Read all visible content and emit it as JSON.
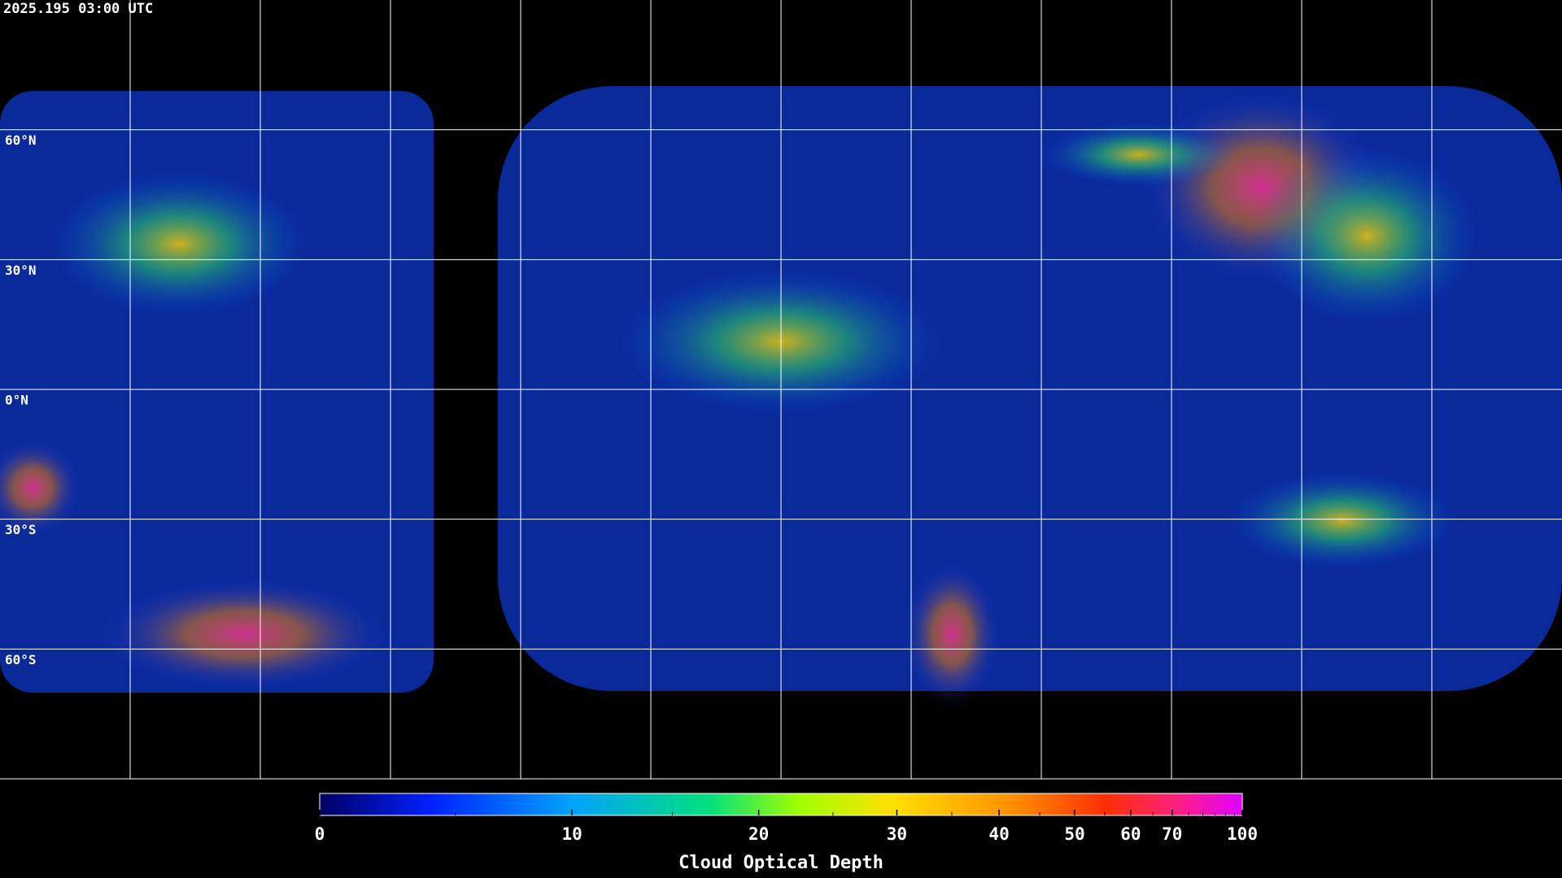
{
  "header": {
    "title": "2025.195 03:00 UTC"
  },
  "map": {
    "lon_range": [
      -180,
      180
    ],
    "lat_range": [
      90,
      -90
    ],
    "lon_lines": [
      -150,
      -120,
      -90,
      -60,
      -30,
      0,
      30,
      60,
      90,
      120,
      150
    ],
    "lat_lines": [
      {
        "value": 60,
        "label": "60°N"
      },
      {
        "value": 30,
        "label": "30°N"
      },
      {
        "value": 0,
        "label": "0°N"
      },
      {
        "value": -30,
        "label": "30°S"
      },
      {
        "value": -60,
        "label": "60°S"
      }
    ]
  },
  "colorbar": {
    "label": "Cloud Optical Depth",
    "range": [
      0,
      100
    ],
    "ticks": [
      0,
      10,
      20,
      30,
      40,
      50,
      60,
      70,
      100
    ],
    "minor_ticks": [
      5,
      15,
      25,
      35,
      45,
      55,
      65,
      75,
      80,
      85,
      90,
      95
    ]
  }
}
